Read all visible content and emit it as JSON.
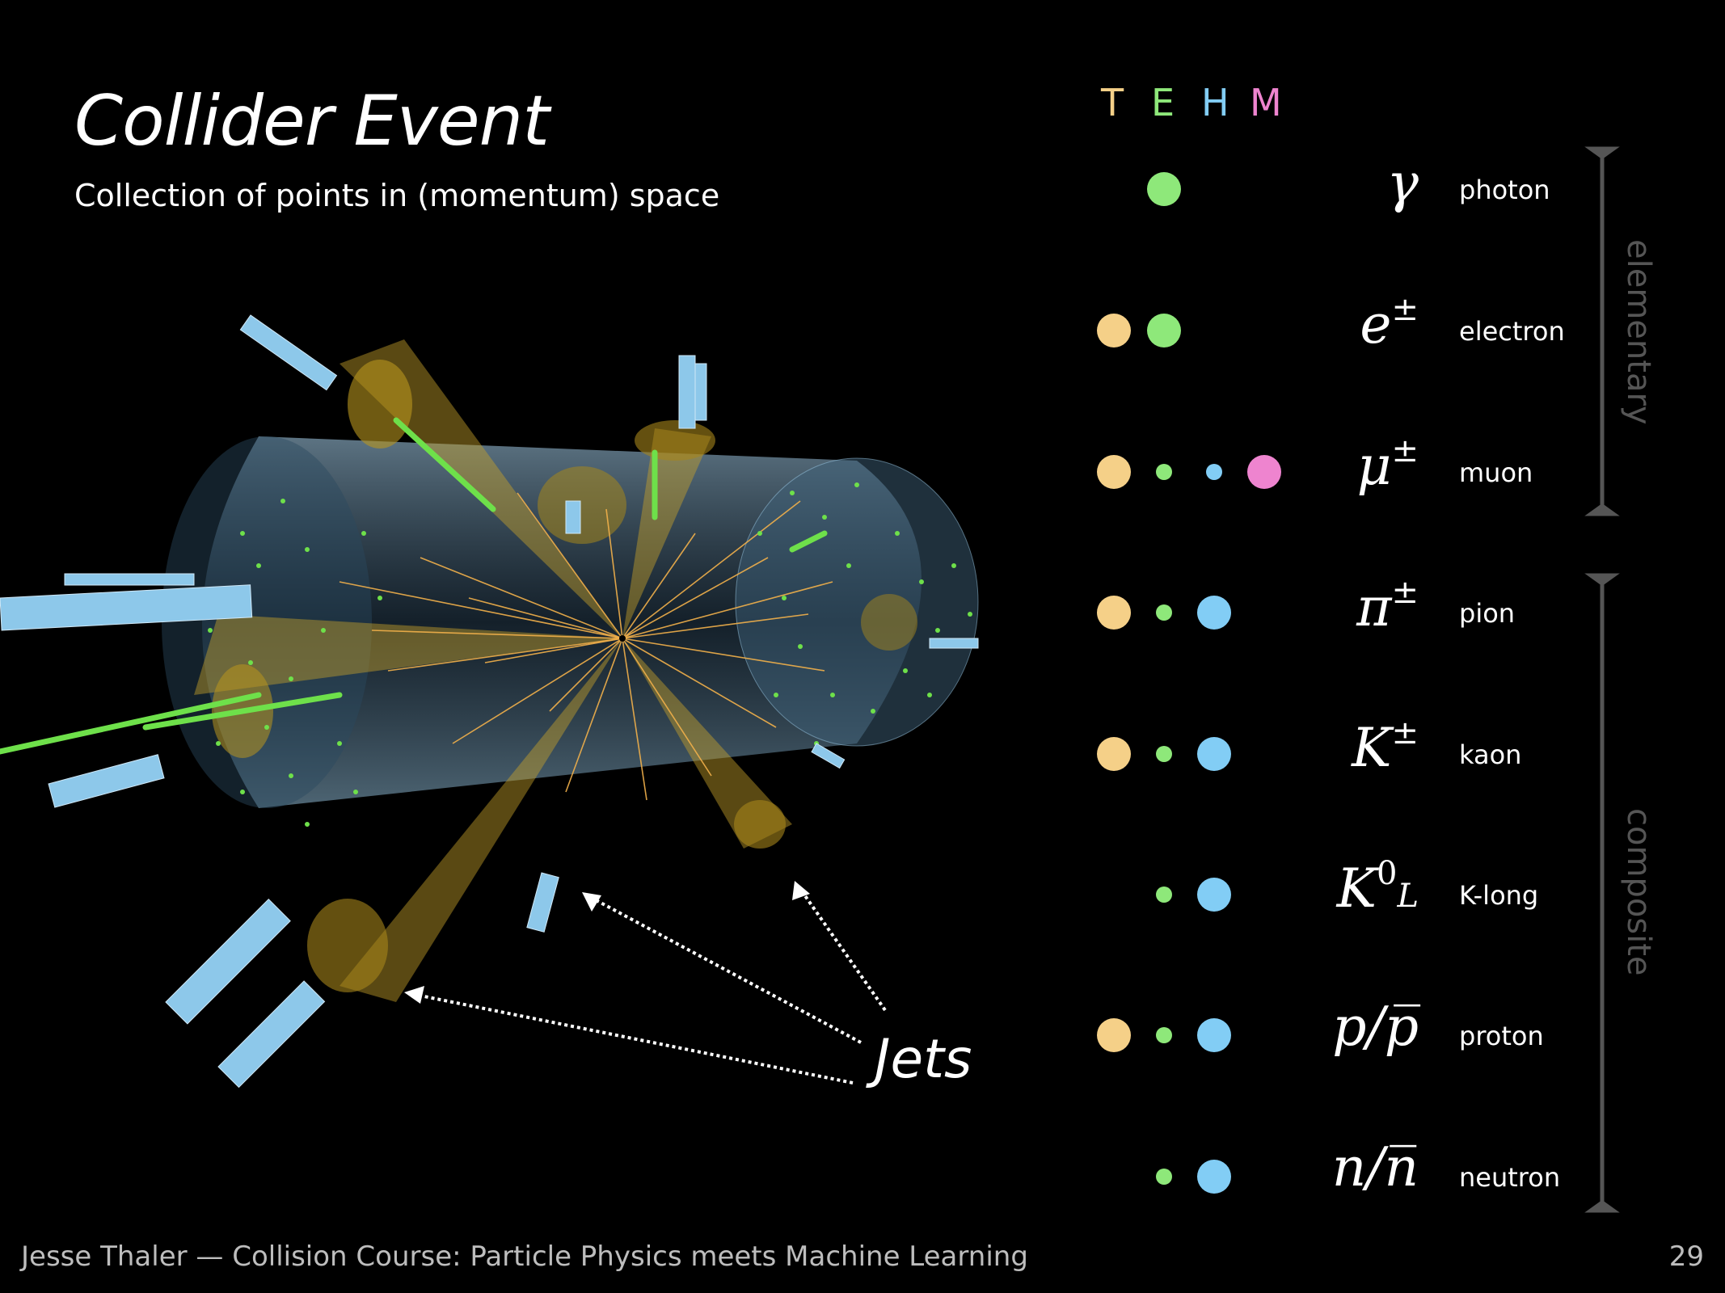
{
  "slide": {
    "title": "Collider Event",
    "subtitle": "Collection of points in (momentum) space",
    "footer": "Jesse Thaler — Collision Course:  Particle Physics meets Machine Learning",
    "page_number": "29",
    "jets_label": "Jets"
  },
  "legend_header": [
    {
      "letter": "T",
      "color": "#f5d088"
    },
    {
      "letter": "E",
      "color": "#8ee87a"
    },
    {
      "letter": "H",
      "color": "#82cdf5"
    },
    {
      "letter": "M",
      "color": "#ee84cf"
    }
  ],
  "particles": [
    {
      "symbol": "γ",
      "sup": "",
      "sub": "",
      "name": "photon"
    },
    {
      "symbol": "e",
      "sup": "±",
      "sub": "",
      "name": "electron"
    },
    {
      "symbol": "μ",
      "sup": "±",
      "sub": "",
      "name": "muon"
    },
    {
      "symbol": "π",
      "sup": "±",
      "sub": "",
      "name": "pion"
    },
    {
      "symbol": "K",
      "sup": "±",
      "sub": "",
      "name": "kaon"
    },
    {
      "symbol": "K",
      "sup": "0",
      "sub": "L",
      "name": "K-long"
    },
    {
      "symbol": "p/p̅",
      "sup": "",
      "sub": "",
      "name": "proton"
    },
    {
      "symbol": "n/n̅",
      "sup": "",
      "sub": "",
      "name": "neutron"
    }
  ],
  "groups": {
    "elementary": "elementary",
    "composite": "composite"
  }
}
